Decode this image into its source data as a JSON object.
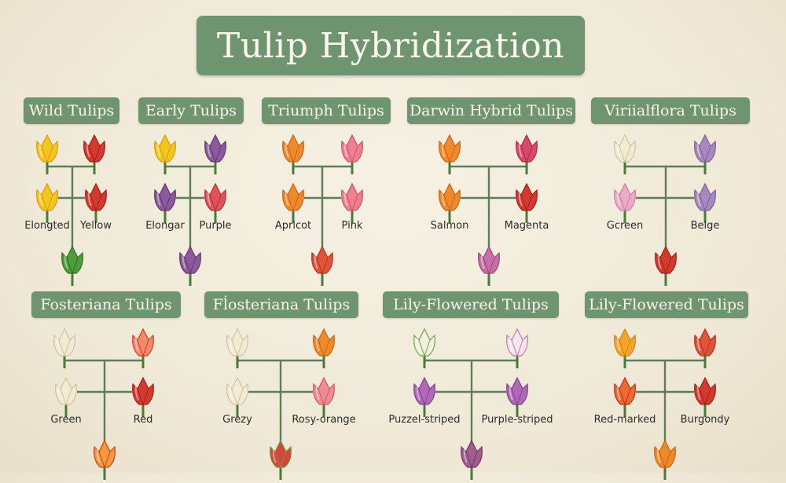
{
  "title": "Tulip Hybridization",
  "colors": {
    "label_bg": "#6f9570",
    "line": "#5e7f55",
    "background": "#f2ecdd"
  },
  "groups": [
    {
      "label": "Wild Tulips",
      "parents": [
        "yellow",
        "red"
      ],
      "children": [
        "yellow",
        "red"
      ],
      "offspring": "green",
      "names": [
        "Elongted",
        "Yellow"
      ]
    },
    {
      "label": "Early Tulips",
      "parents": [
        "yellow",
        "purple"
      ],
      "children": [
        "purple",
        "pink-red"
      ],
      "offspring": "purple",
      "names": [
        "Elongar",
        "Purple"
      ]
    },
    {
      "label": "Triumph Tulips",
      "parents": [
        "orange",
        "pink"
      ],
      "children": [
        "orange",
        "pink"
      ],
      "offspring": "red-orange",
      "names": [
        "Apricot",
        "Pink"
      ]
    },
    {
      "label": "Darwin Hybrid Tulips",
      "parents": [
        "orange",
        "magenta-red"
      ],
      "children": [
        "orange",
        "red"
      ],
      "offspring": "magenta",
      "names": [
        "Salmon",
        "Magenta"
      ]
    },
    {
      "label": "Viriialflora Tulips",
      "parents": [
        "cream",
        "lavender"
      ],
      "children": [
        "light-pink",
        "lavender"
      ],
      "offspring": "red",
      "names": [
        "Gcreen",
        "Beige"
      ]
    },
    {
      "label": "Fosteriana Tulips",
      "parents": [
        "cream",
        "red-striped"
      ],
      "children": [
        "cream",
        "red"
      ],
      "offspring": "red-yellow-striped",
      "names": [
        "Green",
        "Red"
      ]
    },
    {
      "label": "Fl̇osteriana Tulips",
      "parents": [
        "cream",
        "orange"
      ],
      "children": [
        "cream",
        "rosy"
      ],
      "offspring": "red-green",
      "names": [
        "Grezy",
        "Rosy-orange"
      ]
    },
    {
      "label": "Lily-Flowered Tulips",
      "parents": [
        "white-green",
        "white-pink"
      ],
      "children": [
        "violet",
        "violet"
      ],
      "offspring": "plum",
      "names": [
        "Puzzel-striped",
        "Purple-striped"
      ]
    },
    {
      "label": "Lily-Flowered Tulips",
      "parents": [
        "orange-yellow",
        "red-orange"
      ],
      "children": [
        "red-striped-orange",
        "red"
      ],
      "offspring": "orange",
      "names": [
        "Red-marked",
        "Burgondy"
      ]
    }
  ]
}
